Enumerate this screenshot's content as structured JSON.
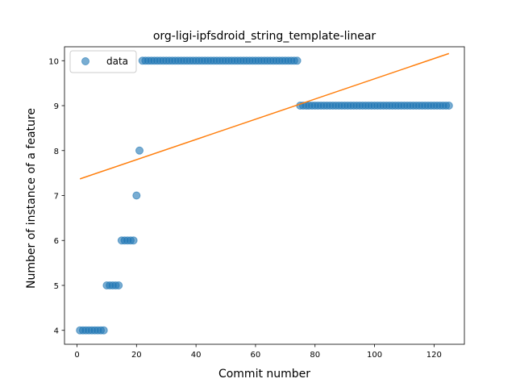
{
  "chart_data": {
    "type": "scatter",
    "title": "org-ligi-ipfsdroid_string_template-linear",
    "xlabel": "Commit number",
    "ylabel": "Number of instance of a feature",
    "xlim": [
      -4.2,
      130.2
    ],
    "ylim": [
      3.69,
      10.31
    ],
    "xticks": [
      0,
      20,
      40,
      60,
      80,
      100,
      120
    ],
    "yticks": [
      4,
      5,
      6,
      7,
      8,
      9,
      10
    ],
    "grid": false,
    "legend_position": "upper left",
    "series": [
      {
        "name": "data",
        "kind": "points",
        "color": "#1f77b4",
        "points": [
          [
            1,
            4
          ],
          [
            2,
            4
          ],
          [
            3,
            4
          ],
          [
            4,
            4
          ],
          [
            5,
            4
          ],
          [
            6,
            4
          ],
          [
            7,
            4
          ],
          [
            8,
            4
          ],
          [
            9,
            4
          ],
          [
            10,
            5
          ],
          [
            11,
            5
          ],
          [
            12,
            5
          ],
          [
            13,
            5
          ],
          [
            14,
            5
          ],
          [
            15,
            6
          ],
          [
            16,
            6
          ],
          [
            17,
            6
          ],
          [
            18,
            6
          ],
          [
            19,
            6
          ],
          [
            20,
            7
          ],
          [
            21,
            8
          ],
          [
            22,
            10
          ],
          [
            23,
            10
          ],
          [
            24,
            10
          ],
          [
            25,
            10
          ],
          [
            26,
            10
          ],
          [
            27,
            10
          ],
          [
            28,
            10
          ],
          [
            29,
            10
          ],
          [
            30,
            10
          ],
          [
            31,
            10
          ],
          [
            32,
            10
          ],
          [
            33,
            10
          ],
          [
            34,
            10
          ],
          [
            35,
            10
          ],
          [
            36,
            10
          ],
          [
            37,
            10
          ],
          [
            38,
            10
          ],
          [
            39,
            10
          ],
          [
            40,
            10
          ],
          [
            41,
            10
          ],
          [
            42,
            10
          ],
          [
            43,
            10
          ],
          [
            44,
            10
          ],
          [
            45,
            10
          ],
          [
            46,
            10
          ],
          [
            47,
            10
          ],
          [
            48,
            10
          ],
          [
            49,
            10
          ],
          [
            50,
            10
          ],
          [
            51,
            10
          ],
          [
            52,
            10
          ],
          [
            53,
            10
          ],
          [
            54,
            10
          ],
          [
            55,
            10
          ],
          [
            56,
            10
          ],
          [
            57,
            10
          ],
          [
            58,
            10
          ],
          [
            59,
            10
          ],
          [
            60,
            10
          ],
          [
            61,
            10
          ],
          [
            62,
            10
          ],
          [
            63,
            10
          ],
          [
            64,
            10
          ],
          [
            65,
            10
          ],
          [
            66,
            10
          ],
          [
            67,
            10
          ],
          [
            68,
            10
          ],
          [
            69,
            10
          ],
          [
            70,
            10
          ],
          [
            71,
            10
          ],
          [
            72,
            10
          ],
          [
            73,
            10
          ],
          [
            74,
            10
          ],
          [
            75,
            9
          ],
          [
            76,
            9
          ],
          [
            77,
            9
          ],
          [
            78,
            9
          ],
          [
            79,
            9
          ],
          [
            80,
            9
          ],
          [
            81,
            9
          ],
          [
            82,
            9
          ],
          [
            83,
            9
          ],
          [
            84,
            9
          ],
          [
            85,
            9
          ],
          [
            86,
            9
          ],
          [
            87,
            9
          ],
          [
            88,
            9
          ],
          [
            89,
            9
          ],
          [
            90,
            9
          ],
          [
            91,
            9
          ],
          [
            92,
            9
          ],
          [
            93,
            9
          ],
          [
            94,
            9
          ],
          [
            95,
            9
          ],
          [
            96,
            9
          ],
          [
            97,
            9
          ],
          [
            98,
            9
          ],
          [
            99,
            9
          ],
          [
            100,
            9
          ],
          [
            101,
            9
          ],
          [
            102,
            9
          ],
          [
            103,
            9
          ],
          [
            104,
            9
          ],
          [
            105,
            9
          ],
          [
            106,
            9
          ],
          [
            107,
            9
          ],
          [
            108,
            9
          ],
          [
            109,
            9
          ],
          [
            110,
            9
          ],
          [
            111,
            9
          ],
          [
            112,
            9
          ],
          [
            113,
            9
          ],
          [
            114,
            9
          ],
          [
            115,
            9
          ],
          [
            116,
            9
          ],
          [
            117,
            9
          ],
          [
            118,
            9
          ],
          [
            119,
            9
          ],
          [
            120,
            9
          ],
          [
            121,
            9
          ],
          [
            122,
            9
          ],
          [
            123,
            9
          ],
          [
            124,
            9
          ],
          [
            125,
            9
          ]
        ]
      },
      {
        "kind": "line",
        "color": "#ff7f0e",
        "points": [
          [
            1,
            7.37
          ],
          [
            125,
            10.16
          ]
        ]
      }
    ]
  }
}
